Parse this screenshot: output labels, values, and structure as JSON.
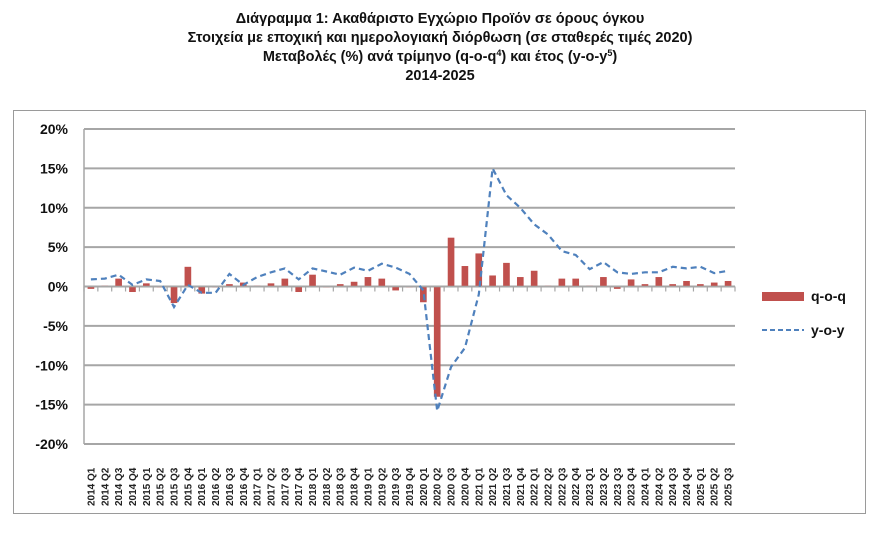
{
  "title": {
    "line1": "Διάγραμμα 1: Ακαθάριστο Εγχώριο Προϊόν σε όρους όγκου",
    "line2": "Στοιχεία με εποχική και ημερολογιακή διόρθωση (σε σταθερές τιμές 2020)",
    "line3_pre": "Μεταβολές (%) ανά τρίμηνο (q-o-q",
    "line3_sup1": "4",
    "line3_mid": ") και έτος (y-o-y",
    "line3_sup2": "5",
    "line3_post": ")",
    "line4": "2014-2025"
  },
  "legend": {
    "series1": "q-o-q",
    "series2": "y-o-y"
  },
  "colors": {
    "bar": "#c0504d",
    "line": "#4f81bd",
    "grid": "#a6a6a6"
  },
  "chart_data": {
    "type": "bar+line",
    "title": "Διάγραμμα 1: Ακαθάριστο Εγχώριο Προϊόν σε όρους όγκου — Μεταβολές (%) ανά τρίμηνο (q-o-q) και έτος (y-o-y), 2014-2025",
    "xlabel": "",
    "ylabel": "",
    "ylim": [
      -20,
      20
    ],
    "yticks": [
      "-20%",
      "-15%",
      "-10%",
      "-5%",
      "0%",
      "5%",
      "10%",
      "15%",
      "20%"
    ],
    "grid": true,
    "legend_position": "right",
    "categories": [
      "2014 Q1",
      "2014 Q2",
      "2014 Q3",
      "2014 Q4",
      "2015 Q1",
      "2015 Q2",
      "2015 Q3",
      "2015 Q4",
      "2016 Q1",
      "2016 Q2",
      "2016 Q3",
      "2016 Q4",
      "2017 Q1",
      "2017 Q2",
      "2017 Q3",
      "2017 Q4",
      "2018 Q1",
      "2018 Q2",
      "2018 Q3",
      "2018 Q4",
      "2019 Q1",
      "2019 Q2",
      "2019 Q3",
      "2019 Q4",
      "2020 Q1",
      "2020 Q2",
      "2020 Q3",
      "2020 Q4",
      "2021 Q1",
      "2021 Q2",
      "2021 Q3",
      "2021 Q4",
      "2022 Q1",
      "2022 Q2",
      "2022 Q3",
      "2022 Q4",
      "2023 Q1",
      "2023 Q2",
      "2023 Q3",
      "2023 Q4",
      "2024 Q1",
      "2024 Q2",
      "2024 Q3",
      "2024 Q4",
      "2025 Q1",
      "2025 Q2",
      "2025 Q3"
    ],
    "series": [
      {
        "name": "q-o-q",
        "kind": "bar",
        "values": [
          -0.3,
          0.1,
          1.0,
          -0.7,
          0.4,
          0.0,
          -2.1,
          2.5,
          -0.9,
          -0.1,
          0.3,
          0.5,
          0.1,
          0.4,
          1.0,
          -0.7,
          1.5,
          0.0,
          0.3,
          0.6,
          1.2,
          1.0,
          -0.5,
          -0.1,
          -2.0,
          -14.0,
          6.2,
          2.6,
          4.2,
          1.4,
          3.0,
          1.2,
          2.0,
          0.1,
          1.0,
          1.0,
          0.1,
          1.2,
          -0.3,
          0.9,
          0.3,
          1.2,
          0.3,
          0.7,
          0.3,
          0.5,
          0.7
        ]
      },
      {
        "name": "y-o-y",
        "kind": "line",
        "values": [
          0.9,
          1.0,
          1.5,
          0.2,
          0.9,
          0.7,
          -2.6,
          0.2,
          -0.8,
          -0.8,
          1.6,
          0.2,
          1.2,
          1.8,
          2.3,
          0.9,
          2.3,
          1.9,
          1.5,
          2.4,
          2.0,
          2.9,
          2.4,
          1.6,
          -0.5,
          -15.8,
          -10.2,
          -7.8,
          -1.0,
          15.0,
          11.6,
          10.0,
          7.9,
          6.6,
          4.5,
          4.0,
          2.2,
          3.1,
          1.8,
          1.6,
          1.8,
          1.8,
          2.5,
          2.3,
          2.5,
          1.7,
          2.0
        ]
      }
    ]
  }
}
